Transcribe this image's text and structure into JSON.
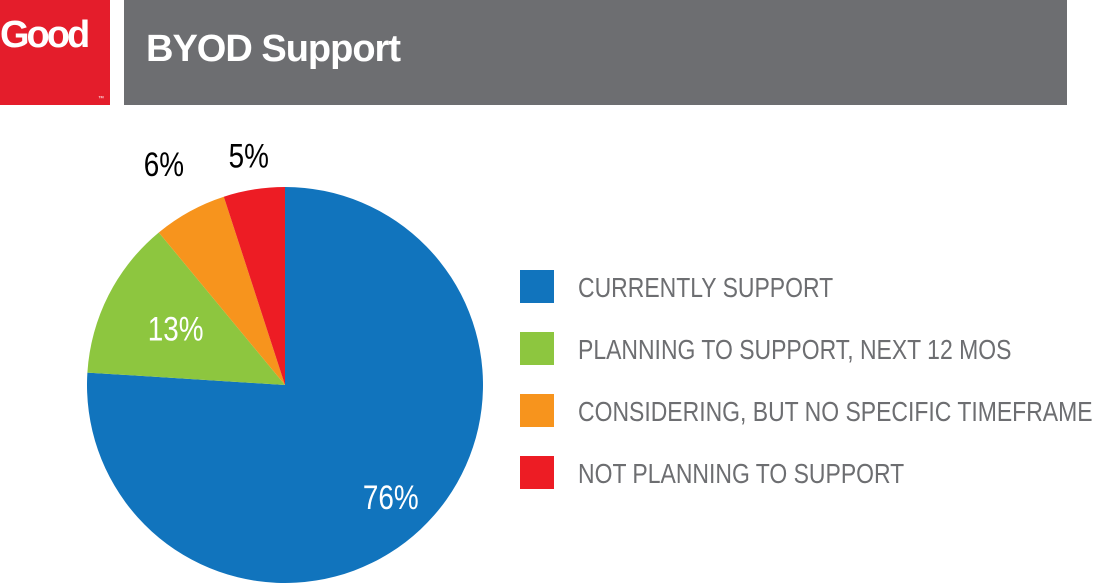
{
  "header": {
    "logo_text": "Good",
    "logo_tm": "™",
    "title": "BYOD Support",
    "logo_color": "#e41d2b",
    "bar_color": "#6d6e71"
  },
  "chart_data": {
    "type": "pie",
    "title": "BYOD Support",
    "slices": [
      {
        "label": "CURRENTLY SUPPORT",
        "value": 76,
        "value_label": "76%",
        "color": "#1174bd",
        "label_color": "#ffffff"
      },
      {
        "label": "PLANNING TO SUPPORT, NEXT 12 MOS",
        "value": 13,
        "value_label": "13%",
        "color": "#8dc63f",
        "label_color": "#ffffff"
      },
      {
        "label": "CONSIDERING, BUT NO SPECIFIC TIMEFRAME",
        "value": 6,
        "value_label": "6%",
        "color": "#f7941d",
        "label_color": "#000000"
      },
      {
        "label": "NOT PLANNING TO SUPPORT",
        "value": 5,
        "value_label": "5%",
        "color": "#ed1c24",
        "label_color": "#000000"
      }
    ],
    "start_angle_deg": 0,
    "direction": "clockwise",
    "legend_position": "right"
  }
}
